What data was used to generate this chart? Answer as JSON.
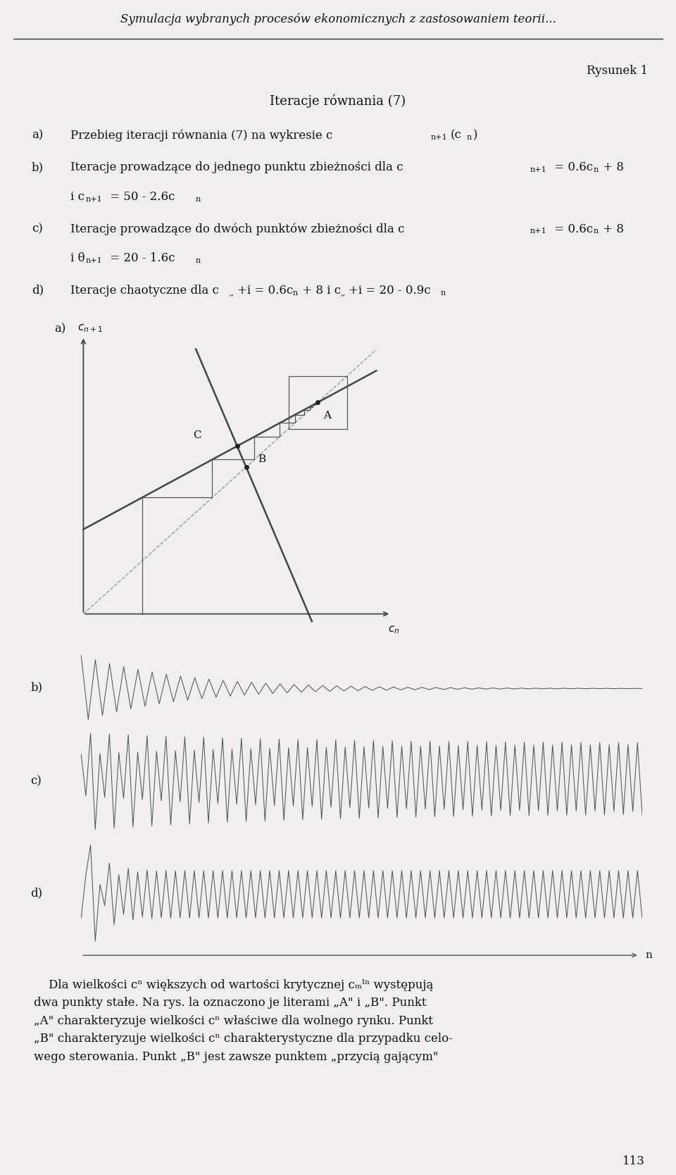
{
  "bg_color": "#f0eeee",
  "text_color": "#111111",
  "line_color": "#444444",
  "title_italic": "Symulacja wybranych procesów ekonomicznych z zastosowaniem teorii...",
  "rysunek": "Rysunek 1",
  "center_title": "Iteracje równania (7)",
  "font_size_main": 12,
  "font_size_sub": 8,
  "n_b": 80,
  "n_c": 120,
  "n_d": 120,
  "page_number": "113"
}
